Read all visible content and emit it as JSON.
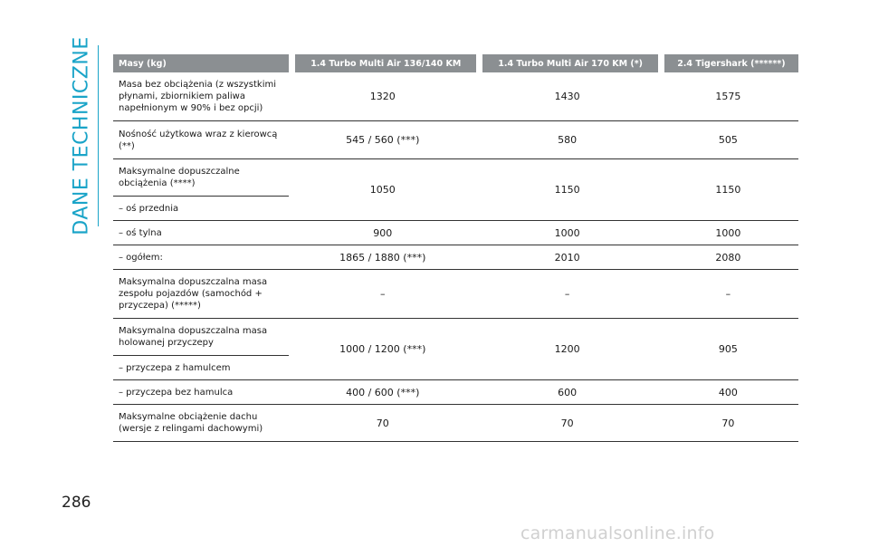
{
  "section_title": "DANE TECHNICZNE",
  "page_number": "286",
  "watermark": "carmanualsonline.info",
  "table": {
    "headers": [
      "Masy (kg)",
      "1.4 Turbo Multi Air 136/140 KM",
      "1.4 Turbo Multi Air 170 KM (*)",
      "2.4 Tigershark (******)"
    ],
    "rows": [
      {
        "label": "Masa bez obciążenia (z wszystkimi płynami, zbiornikiem paliwa napełnionym w 90% i bez opcji)",
        "values": [
          "1320",
          "1430",
          "1575"
        ]
      },
      {
        "label": "Nośność użytkowa wraz z kierowcą (**)",
        "values": [
          "545 / 560 (***)",
          "580",
          "505"
        ]
      },
      {
        "label": "Maksymalne dopuszczalne obciążenia (****)",
        "sublabel": "– oś przednia",
        "values": [
          "1050",
          "1150",
          "1150"
        ]
      },
      {
        "label": "– oś tylna",
        "values": [
          "900",
          "1000",
          "1000"
        ]
      },
      {
        "label": "– ogółem:",
        "values": [
          "1865 / 1880 (***)",
          "2010",
          "2080"
        ]
      },
      {
        "label": "Maksymalna dopuszczalna masa zespołu pojazdów (samochód + przyczepa) (*****)",
        "values": [
          "–",
          "–",
          "–"
        ]
      },
      {
        "label": "Maksymalna dopuszczalna masa holowanej przyczepy",
        "sublabel": "– przyczepa z hamulcem",
        "values": [
          "1000 / 1200 (***)",
          "1200",
          "905"
        ]
      },
      {
        "label": "– przyczepa bez hamulca",
        "values": [
          "400 / 600 (***)",
          "600",
          "400"
        ]
      },
      {
        "label": "Maksymalne obciążenie dachu (wersje z relingami dachowymi)",
        "values": [
          "70",
          "70",
          "70"
        ]
      }
    ]
  }
}
